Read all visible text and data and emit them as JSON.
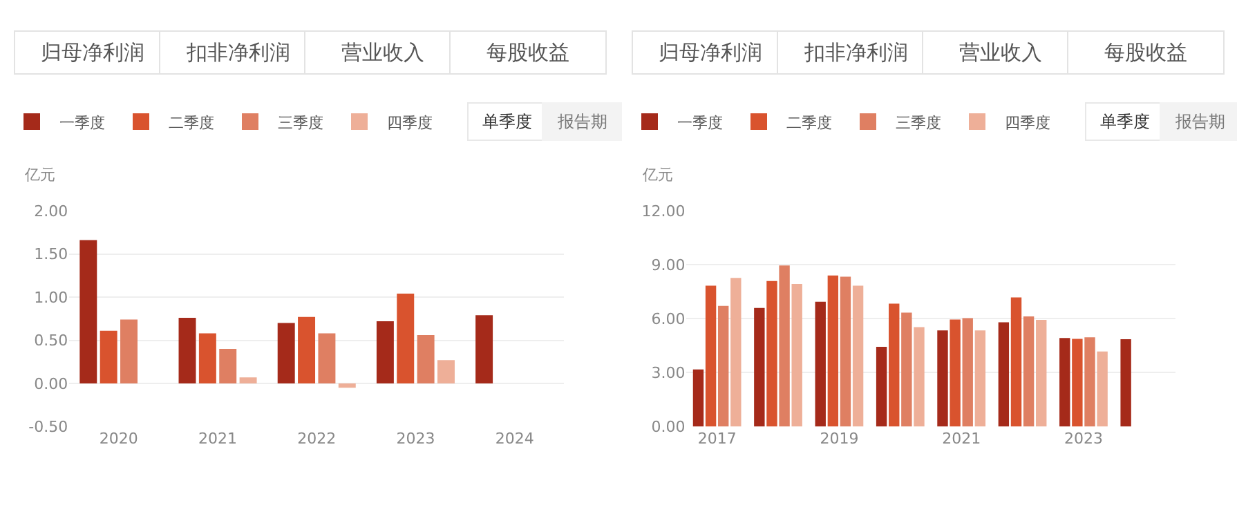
{
  "chart_data": [
    {
      "type": "bar",
      "ylabel": "亿元",
      "categories": [
        "2020",
        "2021",
        "2022",
        "2023",
        "2024"
      ],
      "ylim": [
        -0.5,
        2.0
      ],
      "yticks": [
        {
          "value": -0.5,
          "label": "-0.50"
        },
        {
          "value": 0,
          "label": "0.00"
        },
        {
          "value": 0.5,
          "label": "0.50"
        },
        {
          "value": 1.0,
          "label": "1.00"
        },
        {
          "value": 1.5,
          "label": "1.50"
        },
        {
          "value": 2.0,
          "label": "2.00"
        }
      ],
      "grid": "y",
      "legend": "top left",
      "annotations": [
        "归母净利润",
        "扣非净利润",
        "营业收入",
        "每股收益",
        "单季度",
        "报告期"
      ],
      "series": [
        {
          "name": "一季度",
          "color": "#a52a1a",
          "values": [
            1.66,
            0.76,
            0.7,
            0.72,
            0.79
          ]
        },
        {
          "name": "二季度",
          "color": "#d9532e",
          "values": [
            0.61,
            0.58,
            0.77,
            1.04,
            null
          ]
        },
        {
          "name": "三季度",
          "color": "#df7f62",
          "values": [
            0.74,
            0.4,
            0.58,
            0.56,
            null
          ]
        },
        {
          "name": "四季度",
          "color": "#eeaf98",
          "values": [
            null,
            0.07,
            -0.05,
            0.27,
            null
          ]
        }
      ]
    },
    {
      "type": "bar",
      "ylabel": "亿元",
      "categories": [
        "2017",
        null,
        "2019",
        null,
        "2021",
        null,
        "2023",
        null
      ],
      "ylim": [
        0,
        12
      ],
      "yticks": [
        {
          "value": 0,
          "label": "0.00"
        },
        {
          "value": 3,
          "label": "3.00"
        },
        {
          "value": 6,
          "label": "6.00"
        },
        {
          "value": 9,
          "label": "9.00"
        },
        {
          "value": 12,
          "label": "12.00"
        }
      ],
      "grid": "y",
      "legend": "top left",
      "annotations": [
        "归母净利润",
        "扣非净利润",
        "营业收入",
        "每股收益",
        "单季度",
        "报告期"
      ],
      "series": [
        {
          "name": "一季度",
          "color": "#a52a1a",
          "values": [
            3.18,
            6.6,
            6.94,
            4.44,
            5.35,
            5.8,
            4.93,
            4.86
          ]
        },
        {
          "name": "二季度",
          "color": "#d9532e",
          "values": [
            7.83,
            8.09,
            8.4,
            6.84,
            5.95,
            7.18,
            4.88,
            null
          ]
        },
        {
          "name": "三季度",
          "color": "#df7f62",
          "values": [
            6.71,
            8.96,
            8.33,
            6.34,
            6.03,
            6.13,
            4.96,
            null
          ]
        },
        {
          "name": "四季度",
          "color": "#eeaf98",
          "values": [
            8.27,
            7.93,
            7.83,
            5.53,
            5.35,
            5.93,
            4.18,
            null
          ]
        }
      ]
    }
  ]
}
